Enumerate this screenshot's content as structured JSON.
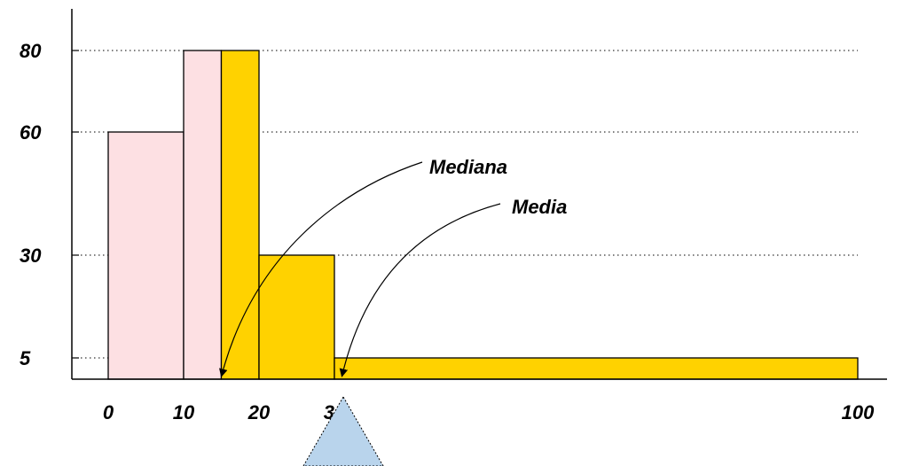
{
  "chart_data": {
    "type": "bar",
    "title": "",
    "xlabel": "",
    "ylabel": "",
    "bins": [
      {
        "x0": 0,
        "x1": 10,
        "value": 60,
        "group": "pink"
      },
      {
        "x0": 10,
        "x1": 15,
        "value": 80,
        "group": "pink"
      },
      {
        "x0": 15,
        "x1": 20,
        "value": 80,
        "group": "yellow"
      },
      {
        "x0": 20,
        "x1": 30,
        "value": 30,
        "group": "yellow"
      },
      {
        "x0": 30,
        "x1": 100,
        "value": 5,
        "group": "yellow"
      }
    ],
    "x_ticks": [
      {
        "value": 0,
        "label": "0"
      },
      {
        "value": 10,
        "label": "10"
      },
      {
        "value": 20,
        "label": "20"
      },
      {
        "value": 30,
        "label": "30"
      },
      {
        "value": 100,
        "label": "100"
      }
    ],
    "y_ticks": [
      {
        "value": 5,
        "label": "5"
      },
      {
        "value": 30,
        "label": "30"
      },
      {
        "value": 60,
        "label": "60"
      },
      {
        "value": 80,
        "label": "80"
      }
    ],
    "annotations": [
      {
        "label": "Mediana",
        "x": 15,
        "y": 0
      },
      {
        "label": "Media",
        "x": 31,
        "y": 0
      }
    ],
    "pointer_x": 30,
    "colors": {
      "pink": "#fde0e3",
      "yellow": "#ffd200",
      "pointer": "#b9d4ec"
    },
    "grid": true,
    "axis_scale": "piecewise"
  }
}
